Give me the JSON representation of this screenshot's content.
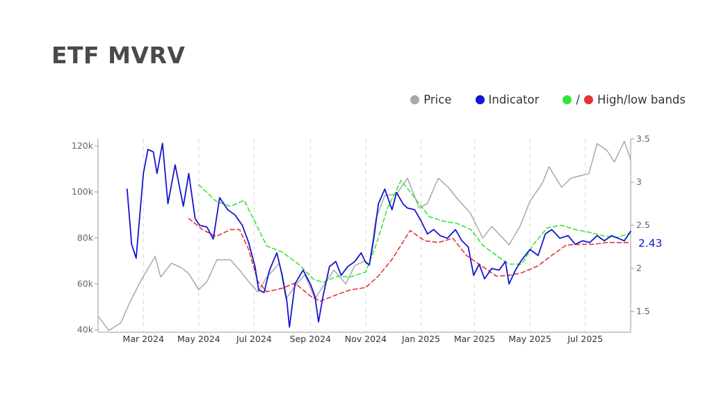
{
  "title": "ETF MVRV",
  "legend": {
    "price": {
      "label": "Price",
      "color": "#a8a8a8"
    },
    "indicator": {
      "label": "Indicator",
      "color": "#1414d2"
    },
    "bands": {
      "label": "High/low bands",
      "separator": "/",
      "high_color": "#33e633",
      "low_color": "#e63333"
    }
  },
  "chart_data": {
    "type": "line",
    "title": "ETF MVRV",
    "x_ticks": [
      "Mar 2024",
      "May 2024",
      "Jul 2024",
      "Sep 2024",
      "Nov 2024",
      "Jan 2025",
      "Mar 2025",
      "May 2025",
      "Jul 2025"
    ],
    "x_tick_dates": [
      "2024-03-01",
      "2024-05-01",
      "2024-07-01",
      "2024-09-01",
      "2024-11-01",
      "2025-01-01",
      "2025-03-01",
      "2025-05-01",
      "2025-07-01"
    ],
    "x_range": [
      "2024-01-11",
      "2025-08-20"
    ],
    "y_left": {
      "ticks": [
        40000,
        60000,
        80000,
        100000,
        120000
      ],
      "tick_labels": [
        "40k",
        "60k",
        "80k",
        "100k",
        "120k"
      ],
      "range": [
        39000,
        123000
      ]
    },
    "y_right": {
      "ticks": [
        1.5,
        2,
        2.5,
        3,
        3.5
      ],
      "tick_labels": [
        "1.5",
        "2",
        "2.5",
        "3",
        "3.5"
      ],
      "range": [
        1.26,
        3.5
      ]
    },
    "grid": {
      "vertical_dashed": true,
      "horizontal": false
    },
    "legend_position": "top-right",
    "last_value_label": "2.43",
    "series": [
      {
        "name": "Price",
        "axis": "left",
        "color": "#a8a8a8",
        "style": "solid",
        "points": [
          [
            "2024-01-11",
            46000
          ],
          [
            "2024-01-23",
            39800
          ],
          [
            "2024-02-05",
            43000
          ],
          [
            "2024-02-15",
            52000
          ],
          [
            "2024-02-28",
            62000
          ],
          [
            "2024-03-05",
            66000
          ],
          [
            "2024-03-14",
            72000
          ],
          [
            "2024-03-20",
            63000
          ],
          [
            "2024-04-01",
            69000
          ],
          [
            "2024-04-12",
            67000
          ],
          [
            "2024-04-20",
            64500
          ],
          [
            "2024-05-01",
            57500
          ],
          [
            "2024-05-10",
            61000
          ],
          [
            "2024-05-21",
            70500
          ],
          [
            "2024-06-05",
            70500
          ],
          [
            "2024-06-15",
            66000
          ],
          [
            "2024-06-25",
            61000
          ],
          [
            "2024-07-05",
            56500
          ],
          [
            "2024-07-15",
            63000
          ],
          [
            "2024-07-29",
            69000
          ],
          [
            "2024-08-05",
            53500
          ],
          [
            "2024-08-15",
            59000
          ],
          [
            "2024-08-26",
            64000
          ],
          [
            "2024-09-06",
            53500
          ],
          [
            "2024-09-15",
            59000
          ],
          [
            "2024-09-27",
            66000
          ],
          [
            "2024-10-10",
            60000
          ],
          [
            "2024-10-20",
            68000
          ],
          [
            "2024-10-31",
            70000
          ],
          [
            "2024-11-05",
            68500
          ],
          [
            "2024-11-12",
            88000
          ],
          [
            "2024-11-22",
            98500
          ],
          [
            "2024-12-05",
            99000
          ],
          [
            "2024-12-17",
            106000
          ],
          [
            "2024-12-30",
            93000
          ],
          [
            "2025-01-08",
            95000
          ],
          [
            "2025-01-20",
            106000
          ],
          [
            "2025-01-31",
            102000
          ],
          [
            "2025-02-10",
            97000
          ],
          [
            "2025-02-24",
            91000
          ],
          [
            "2025-03-10",
            80000
          ],
          [
            "2025-03-20",
            85000
          ],
          [
            "2025-04-08",
            77000
          ],
          [
            "2025-04-20",
            85000
          ],
          [
            "2025-05-01",
            96000
          ],
          [
            "2025-05-15",
            104000
          ],
          [
            "2025-05-22",
            111000
          ],
          [
            "2025-06-05",
            102000
          ],
          [
            "2025-06-15",
            106000
          ],
          [
            "2025-06-25",
            107000
          ],
          [
            "2025-07-05",
            108000
          ],
          [
            "2025-07-14",
            121000
          ],
          [
            "2025-07-25",
            118000
          ],
          [
            "2025-08-02",
            113000
          ],
          [
            "2025-08-13",
            122000
          ],
          [
            "2025-08-20",
            114000
          ]
        ]
      },
      {
        "name": "Indicator",
        "axis": "right",
        "color": "#1414d2",
        "style": "solid",
        "points": [
          [
            "2024-02-12",
            2.92
          ],
          [
            "2024-02-17",
            2.28
          ],
          [
            "2024-02-22",
            2.12
          ],
          [
            "2024-03-01",
            3.1
          ],
          [
            "2024-03-06",
            3.38
          ],
          [
            "2024-03-12",
            3.35
          ],
          [
            "2024-03-16",
            3.1
          ],
          [
            "2024-03-22",
            3.45
          ],
          [
            "2024-03-28",
            2.75
          ],
          [
            "2024-04-05",
            3.2
          ],
          [
            "2024-04-14",
            2.72
          ],
          [
            "2024-04-20",
            3.1
          ],
          [
            "2024-04-27",
            2.58
          ],
          [
            "2024-05-02",
            2.5
          ],
          [
            "2024-05-10",
            2.48
          ],
          [
            "2024-05-17",
            2.34
          ],
          [
            "2024-05-24",
            2.82
          ],
          [
            "2024-06-02",
            2.68
          ],
          [
            "2024-06-10",
            2.62
          ],
          [
            "2024-06-18",
            2.5
          ],
          [
            "2024-06-25",
            2.3
          ],
          [
            "2024-07-02",
            2.02
          ],
          [
            "2024-07-06",
            1.75
          ],
          [
            "2024-07-12",
            1.72
          ],
          [
            "2024-07-18",
            1.98
          ],
          [
            "2024-07-26",
            2.18
          ],
          [
            "2024-08-01",
            1.92
          ],
          [
            "2024-08-06",
            1.63
          ],
          [
            "2024-08-09",
            1.32
          ],
          [
            "2024-08-15",
            1.82
          ],
          [
            "2024-08-24",
            1.98
          ],
          [
            "2024-09-01",
            1.82
          ],
          [
            "2024-09-06",
            1.68
          ],
          [
            "2024-09-10",
            1.38
          ],
          [
            "2024-09-15",
            1.68
          ],
          [
            "2024-09-22",
            2.02
          ],
          [
            "2024-09-29",
            2.08
          ],
          [
            "2024-10-05",
            1.92
          ],
          [
            "2024-10-12",
            2.02
          ],
          [
            "2024-10-20",
            2.08
          ],
          [
            "2024-10-27",
            2.18
          ],
          [
            "2024-11-01",
            2.07
          ],
          [
            "2024-11-05",
            2.04
          ],
          [
            "2024-11-10",
            2.35
          ],
          [
            "2024-11-15",
            2.75
          ],
          [
            "2024-11-22",
            2.92
          ],
          [
            "2024-11-30",
            2.68
          ],
          [
            "2024-12-05",
            2.88
          ],
          [
            "2024-12-12",
            2.75
          ],
          [
            "2024-12-17",
            2.7
          ],
          [
            "2024-12-25",
            2.68
          ],
          [
            "2025-01-01",
            2.55
          ],
          [
            "2025-01-08",
            2.4
          ],
          [
            "2025-01-15",
            2.45
          ],
          [
            "2025-01-22",
            2.38
          ],
          [
            "2025-01-30",
            2.35
          ],
          [
            "2025-02-08",
            2.45
          ],
          [
            "2025-02-15",
            2.32
          ],
          [
            "2025-02-22",
            2.25
          ],
          [
            "2025-02-28",
            1.92
          ],
          [
            "2025-03-06",
            2.05
          ],
          [
            "2025-03-12",
            1.88
          ],
          [
            "2025-03-20",
            2.0
          ],
          [
            "2025-03-28",
            1.98
          ],
          [
            "2025-04-04",
            2.08
          ],
          [
            "2025-04-08",
            1.82
          ],
          [
            "2025-04-15",
            1.98
          ],
          [
            "2025-04-22",
            2.1
          ],
          [
            "2025-05-01",
            2.22
          ],
          [
            "2025-05-10",
            2.15
          ],
          [
            "2025-05-18",
            2.4
          ],
          [
            "2025-05-25",
            2.45
          ],
          [
            "2025-06-03",
            2.35
          ],
          [
            "2025-06-12",
            2.38
          ],
          [
            "2025-06-20",
            2.28
          ],
          [
            "2025-06-28",
            2.32
          ],
          [
            "2025-07-06",
            2.3
          ],
          [
            "2025-07-14",
            2.38
          ],
          [
            "2025-07-22",
            2.32
          ],
          [
            "2025-07-30",
            2.38
          ],
          [
            "2025-08-06",
            2.35
          ],
          [
            "2025-08-13",
            2.32
          ],
          [
            "2025-08-20",
            2.43
          ]
        ]
      },
      {
        "name": "High band",
        "axis": "right",
        "color": "#33e633",
        "style": "dashed",
        "points": [
          [
            "2024-05-01",
            2.97
          ],
          [
            "2024-05-20",
            2.78
          ],
          [
            "2024-06-05",
            2.72
          ],
          [
            "2024-06-20",
            2.79
          ],
          [
            "2024-07-01",
            2.56
          ],
          [
            "2024-07-15",
            2.26
          ],
          [
            "2024-08-01",
            2.19
          ],
          [
            "2024-08-20",
            2.04
          ],
          [
            "2024-09-05",
            1.87
          ],
          [
            "2024-09-15",
            1.84
          ],
          [
            "2024-10-01",
            1.91
          ],
          [
            "2024-10-15",
            1.9
          ],
          [
            "2024-11-01",
            1.96
          ],
          [
            "2024-11-12",
            2.26
          ],
          [
            "2024-11-25",
            2.7
          ],
          [
            "2024-12-10",
            3.02
          ],
          [
            "2024-12-25",
            2.82
          ],
          [
            "2025-01-10",
            2.6
          ],
          [
            "2025-01-25",
            2.55
          ],
          [
            "2025-02-10",
            2.52
          ],
          [
            "2025-02-25",
            2.45
          ],
          [
            "2025-03-10",
            2.27
          ],
          [
            "2025-03-25",
            2.15
          ],
          [
            "2025-04-08",
            2.05
          ],
          [
            "2025-04-22",
            2.05
          ],
          [
            "2025-05-05",
            2.28
          ],
          [
            "2025-05-20",
            2.47
          ],
          [
            "2025-06-05",
            2.5
          ],
          [
            "2025-06-20",
            2.45
          ],
          [
            "2025-07-05",
            2.42
          ],
          [
            "2025-07-20",
            2.38
          ],
          [
            "2025-08-05",
            2.36
          ],
          [
            "2025-08-20",
            2.41
          ]
        ]
      },
      {
        "name": "Low band",
        "axis": "right",
        "color": "#e63333",
        "style": "dashed",
        "points": [
          [
            "2024-04-20",
            2.58
          ],
          [
            "2024-05-05",
            2.45
          ],
          [
            "2024-05-20",
            2.37
          ],
          [
            "2024-06-05",
            2.45
          ],
          [
            "2024-06-15",
            2.45
          ],
          [
            "2024-06-25",
            2.22
          ],
          [
            "2024-07-05",
            1.85
          ],
          [
            "2024-07-15",
            1.73
          ],
          [
            "2024-08-01",
            1.77
          ],
          [
            "2024-08-15",
            1.83
          ],
          [
            "2024-09-01",
            1.68
          ],
          [
            "2024-09-12",
            1.62
          ],
          [
            "2024-10-01",
            1.7
          ],
          [
            "2024-10-15",
            1.75
          ],
          [
            "2024-11-01",
            1.78
          ],
          [
            "2024-11-15",
            1.91
          ],
          [
            "2024-12-01",
            2.12
          ],
          [
            "2024-12-20",
            2.44
          ],
          [
            "2025-01-05",
            2.32
          ],
          [
            "2025-01-20",
            2.3
          ],
          [
            "2025-02-05",
            2.35
          ],
          [
            "2025-02-20",
            2.15
          ],
          [
            "2025-03-10",
            2.02
          ],
          [
            "2025-03-25",
            1.91
          ],
          [
            "2025-04-08",
            1.92
          ],
          [
            "2025-04-22",
            1.95
          ],
          [
            "2025-05-10",
            2.03
          ],
          [
            "2025-05-25",
            2.15
          ],
          [
            "2025-06-10",
            2.27
          ],
          [
            "2025-06-25",
            2.28
          ],
          [
            "2025-07-10",
            2.28
          ],
          [
            "2025-07-25",
            2.3
          ],
          [
            "2025-08-10",
            2.3
          ],
          [
            "2025-08-20",
            2.3
          ]
        ]
      }
    ]
  }
}
